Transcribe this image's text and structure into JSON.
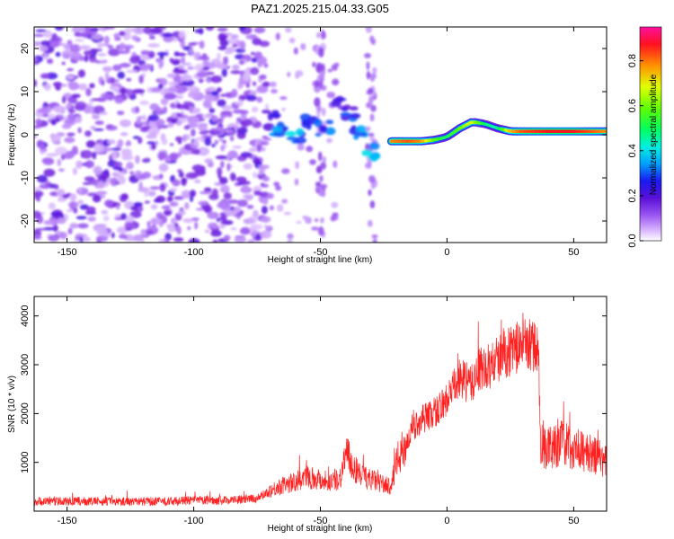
{
  "figure_title": "PAZ1.2025.215.04.33.G05",
  "chart_data": [
    {
      "type": "heatmap",
      "title": "",
      "xlabel": "Height of straight line (km)",
      "ylabel": "Frequency (Hz)",
      "xlim": [
        -163,
        63
      ],
      "ylim": [
        -25,
        25
      ],
      "x_ticks": [
        -150,
        -100,
        -50,
        0,
        50
      ],
      "y_ticks": [
        -20,
        -10,
        0,
        10,
        20
      ],
      "colorbar": {
        "label": "Normalized spectral amplitude",
        "range": [
          0,
          0.95
        ],
        "ticks": [
          0.0,
          0.2,
          0.4,
          0.6,
          0.8
        ],
        "colormap": [
          "#e6c6ff",
          "#9a55f0",
          "#6010d8",
          "#2020f0",
          "#00c0ff",
          "#00ff80",
          "#40ff00",
          "#e0ff00",
          "#ff8000",
          "#ff0040",
          "#ff10a0"
        ]
      },
      "features": {
        "noise_region_km": [
          -163,
          -75
        ],
        "bright_track": {
          "x_km": [
            -22,
            -15,
            -10,
            -5,
            0,
            5,
            10,
            15,
            20,
            25,
            30,
            40,
            50,
            63
          ],
          "freq_hz": [
            -1.5,
            -1.5,
            -1.5,
            -1.2,
            -0.5,
            1.5,
            3.0,
            2.5,
            1.5,
            0.8,
            0.8,
            0.8,
            0.8,
            0.8
          ],
          "amplitude": [
            0.8,
            0.85,
            0.8,
            0.6,
            0.5,
            0.6,
            0.7,
            0.5,
            0.45,
            0.75,
            0.85,
            0.9,
            0.9,
            0.8
          ]
        },
        "transition_blobs": {
          "x_km": [
            -70,
            -65,
            -60,
            -55,
            -48,
            -42,
            -38,
            -34,
            -31
          ],
          "freq_hz": [
            3.5,
            2,
            0,
            3,
            2,
            8,
            5,
            1,
            -4
          ],
          "amplitude": [
            0.25,
            0.35,
            0.4,
            0.3,
            0.3,
            0.25,
            0.3,
            0.35,
            0.4
          ]
        }
      }
    },
    {
      "type": "line",
      "title": "",
      "xlabel": "Height of straight line (km)",
      "ylabel": "SNR (10 * v/v)",
      "xlim": [
        -163,
        63
      ],
      "ylim": [
        0,
        4400
      ],
      "x_ticks": [
        -150,
        -100,
        -50,
        0,
        50
      ],
      "y_ticks": [
        1000,
        2000,
        3000,
        4000
      ],
      "line_color": "#ff2020",
      "series": [
        {
          "x": [
            -163,
            -150,
            -140,
            -130,
            -120,
            -110,
            -100,
            -90,
            -80,
            -75,
            -70,
            -65,
            -60,
            -55,
            -50,
            -45,
            -42,
            -40,
            -37,
            -33,
            -30,
            -25,
            -22,
            -20,
            -17,
            -13,
            -10,
            -5,
            0,
            5,
            10,
            12,
            15,
            20,
            25,
            30,
            33,
            36,
            37,
            38,
            40,
            45,
            50,
            55,
            60,
            63
          ],
          "y": [
            200,
            200,
            200,
            200,
            200,
            200,
            220,
            220,
            240,
            260,
            420,
            520,
            600,
            700,
            650,
            600,
            700,
            1200,
            900,
            700,
            650,
            550,
            500,
            1000,
            1300,
            1700,
            1900,
            2000,
            2300,
            2700,
            2600,
            2900,
            2900,
            3100,
            3300,
            3400,
            3400,
            3300,
            1400,
            1300,
            1300,
            1400,
            1300,
            1200,
            1100,
            1000
          ]
        }
      ]
    }
  ]
}
